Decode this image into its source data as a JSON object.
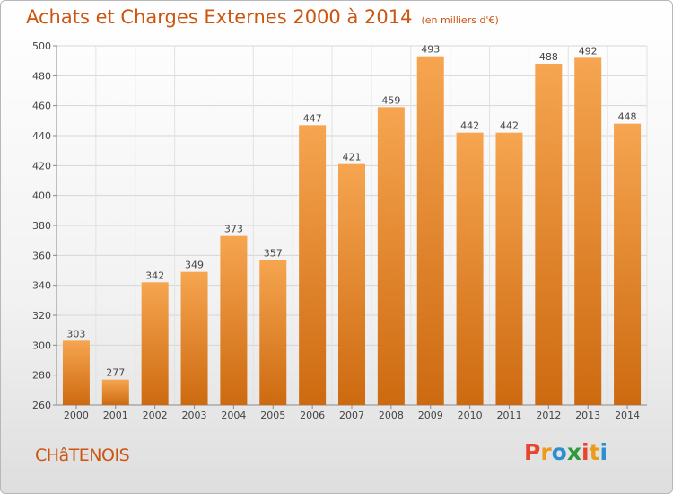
{
  "chart_data": {
    "type": "bar",
    "title": "Achats et Charges Externes 2000 à 2014",
    "unit": "(en milliers d'€)",
    "categories": [
      "2000",
      "2001",
      "2002",
      "2003",
      "2004",
      "2005",
      "2006",
      "2007",
      "2008",
      "2009",
      "2010",
      "2011",
      "2012",
      "2013",
      "2014"
    ],
    "values": [
      303,
      277,
      342,
      349,
      373,
      357,
      447,
      421,
      459,
      493,
      442,
      442,
      488,
      492,
      448
    ],
    "ylim": [
      260,
      500
    ],
    "yticks": [
      260,
      280,
      300,
      320,
      340,
      360,
      380,
      400,
      420,
      440,
      460,
      480,
      500
    ],
    "grid": true,
    "bar_color_top": "#f6a550",
    "bar_color_bottom": "#cd6a10"
  },
  "commune": "CHâTENOIS",
  "brand": {
    "text": "Proxiti",
    "letter_colors": [
      "#e8442e",
      "#ee9a1a",
      "#2b8fd1",
      "#2f9a3a",
      "#e8442e",
      "#ee9a1a",
      "#2b8fd1"
    ]
  }
}
